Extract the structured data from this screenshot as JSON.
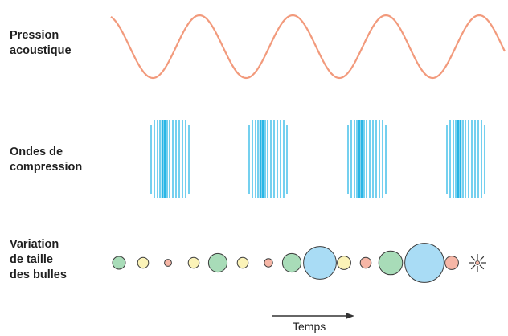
{
  "labels": {
    "pressure": "Pression\nacoustique",
    "compression": "Ondes de\ncompression",
    "bubbles": "Variation\nde taille\ndes bulles",
    "time": "Temps"
  },
  "colors": {
    "wave": "#f29a7c",
    "compression": "#29b6e6",
    "bubble_green": "#a8dcb8",
    "bubble_yellow": "#fbf3b8",
    "bubble_pink": "#f6b6a6",
    "bubble_blue": "#a9dcf5",
    "outline": "#3a3a3a"
  },
  "bubble_sequence": [
    {
      "color": "green",
      "size": 1
    },
    {
      "color": "yellow",
      "size": 0.85
    },
    {
      "color": "pink",
      "size": 0.55
    },
    {
      "color": "yellow",
      "size": 0.85
    },
    {
      "color": "green",
      "size": 1.45
    },
    {
      "color": "yellow",
      "size": 0.85
    },
    {
      "color": "pink",
      "size": 0.65
    },
    {
      "color": "green",
      "size": 1.45
    },
    {
      "color": "blue",
      "size": 2.55
    },
    {
      "color": "yellow",
      "size": 1.05
    },
    {
      "color": "pink",
      "size": 0.85
    },
    {
      "color": "green",
      "size": 1.85
    },
    {
      "color": "blue",
      "size": 3.05
    },
    {
      "color": "pink",
      "size": 1.05
    },
    {
      "color": "collapse",
      "size": 0.5
    }
  ],
  "wave_cycles": 4,
  "compression_groups": 4
}
